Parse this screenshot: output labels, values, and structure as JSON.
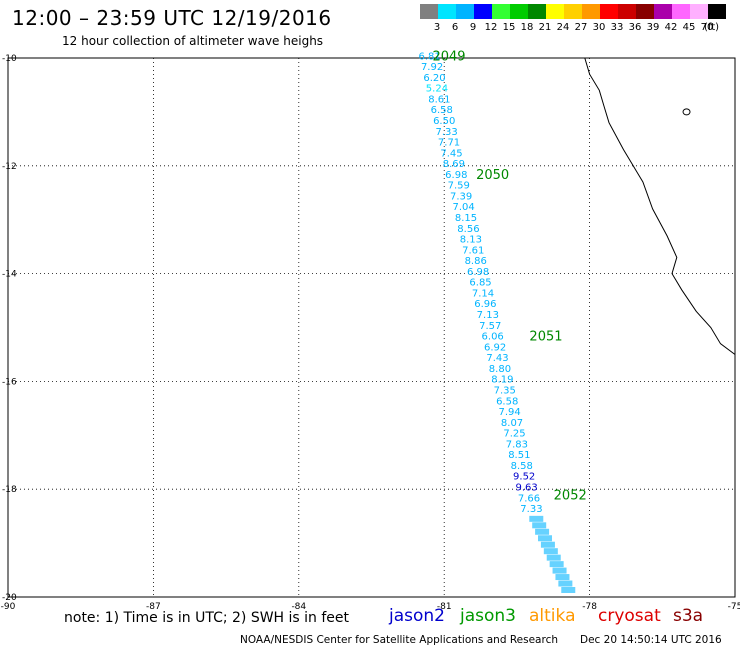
{
  "title": "12:00 – 23:59 UTC 12/19/2016",
  "subtitle": "12 hour collection of altimeter wave heighs",
  "legend": {
    "unit": "(ft)",
    "bins": [
      {
        "label": "3",
        "color": "#808080"
      },
      {
        "label": "6",
        "color": "#00e5ff"
      },
      {
        "label": "9",
        "color": "#00b4ff"
      },
      {
        "label": "12",
        "color": "#0000ff"
      },
      {
        "label": "15",
        "color": "#33ff33"
      },
      {
        "label": "18",
        "color": "#00cc00"
      },
      {
        "label": "21",
        "color": "#008800"
      },
      {
        "label": "24",
        "color": "#ffff00"
      },
      {
        "label": "27",
        "color": "#ffd000"
      },
      {
        "label": "30",
        "color": "#ff9900"
      },
      {
        "label": "33",
        "color": "#ff0000"
      },
      {
        "label": "36",
        "color": "#cc0000"
      },
      {
        "label": "39",
        "color": "#880000"
      },
      {
        "label": "42",
        "color": "#aa00aa"
      },
      {
        "label": "45",
        "color": "#ff66ff"
      },
      {
        "label": "70",
        "color": "#ffb0ff"
      },
      {
        "label": "",
        "color": "#000000"
      }
    ]
  },
  "map": {
    "lon_range": [
      -90,
      -75
    ],
    "lat_range": [
      -20,
      -10
    ],
    "lon_ticks": [
      "-90",
      "-87",
      "-84",
      "-81",
      "-78",
      "-75"
    ],
    "lat_ticks": [
      "-10",
      "-12",
      "-14",
      "-16",
      "-18",
      "-20"
    ],
    "grid": "dotted"
  },
  "passes": [
    {
      "label": "2049",
      "color": "#008800"
    },
    {
      "label": "2050",
      "color": "#008800"
    },
    {
      "label": "2051",
      "color": "#008800"
    },
    {
      "label": "2052",
      "color": "#008800"
    }
  ],
  "swh_points": [
    {
      "lon": -81.3,
      "lat": -9.95,
      "v": "6.81",
      "c": "#00b4ff"
    },
    {
      "lon": -81.25,
      "lat": -10.15,
      "v": "7.92",
      "c": "#00b4ff"
    },
    {
      "lon": -81.2,
      "lat": -10.35,
      "v": "6.20",
      "c": "#00b4ff"
    },
    {
      "lon": -81.15,
      "lat": -10.55,
      "v": "5.24",
      "c": "#00e5ff"
    },
    {
      "lon": -81.1,
      "lat": -10.75,
      "v": "8.61",
      "c": "#00b4ff"
    },
    {
      "lon": -81.05,
      "lat": -10.95,
      "v": "6.58",
      "c": "#00b4ff"
    },
    {
      "lon": -81.0,
      "lat": -11.15,
      "v": "6.50",
      "c": "#00b4ff"
    },
    {
      "lon": -80.95,
      "lat": -11.35,
      "v": "7.33",
      "c": "#00b4ff"
    },
    {
      "lon": -80.9,
      "lat": -11.55,
      "v": "7.71",
      "c": "#00b4ff"
    },
    {
      "lon": -80.85,
      "lat": -11.75,
      "v": "7.45",
      "c": "#00b4ff"
    },
    {
      "lon": -80.8,
      "lat": -11.95,
      "v": "8.69",
      "c": "#00b4ff"
    },
    {
      "lon": -80.75,
      "lat": -12.15,
      "v": "6.98",
      "c": "#00b4ff"
    },
    {
      "lon": -80.7,
      "lat": -12.35,
      "v": "7.59",
      "c": "#00b4ff"
    },
    {
      "lon": -80.65,
      "lat": -12.55,
      "v": "7.39",
      "c": "#00b4ff"
    },
    {
      "lon": -80.6,
      "lat": -12.75,
      "v": "7.04",
      "c": "#00b4ff"
    },
    {
      "lon": -80.55,
      "lat": -12.95,
      "v": "8.15",
      "c": "#00b4ff"
    },
    {
      "lon": -80.5,
      "lat": -13.15,
      "v": "8.56",
      "c": "#00b4ff"
    },
    {
      "lon": -80.45,
      "lat": -13.35,
      "v": "8.13",
      "c": "#00b4ff"
    },
    {
      "lon": -80.4,
      "lat": -13.55,
      "v": "7.61",
      "c": "#00b4ff"
    },
    {
      "lon": -80.35,
      "lat": -13.75,
      "v": "8.86",
      "c": "#00b4ff"
    },
    {
      "lon": -80.3,
      "lat": -13.95,
      "v": "6.98",
      "c": "#00b4ff"
    },
    {
      "lon": -80.25,
      "lat": -14.15,
      "v": "6.85",
      "c": "#00b4ff"
    },
    {
      "lon": -80.2,
      "lat": -14.35,
      "v": "7.14",
      "c": "#00b4ff"
    },
    {
      "lon": -80.15,
      "lat": -14.55,
      "v": "6.96",
      "c": "#00b4ff"
    },
    {
      "lon": -80.1,
      "lat": -14.75,
      "v": "7.13",
      "c": "#00b4ff"
    },
    {
      "lon": -80.05,
      "lat": -14.95,
      "v": "7.57",
      "c": "#00b4ff"
    },
    {
      "lon": -80.0,
      "lat": -15.15,
      "v": "6.06",
      "c": "#00b4ff"
    },
    {
      "lon": -79.95,
      "lat": -15.35,
      "v": "6.92",
      "c": "#00b4ff"
    },
    {
      "lon": -79.9,
      "lat": -15.55,
      "v": "7.43",
      "c": "#00b4ff"
    },
    {
      "lon": -79.85,
      "lat": -15.75,
      "v": "8.80",
      "c": "#00b4ff"
    },
    {
      "lon": -79.8,
      "lat": -15.95,
      "v": "8.19",
      "c": "#00b4ff"
    },
    {
      "lon": -79.75,
      "lat": -16.15,
      "v": "7.35",
      "c": "#00b4ff"
    },
    {
      "lon": -79.7,
      "lat": -16.35,
      "v": "6.58",
      "c": "#00b4ff"
    },
    {
      "lon": -79.65,
      "lat": -16.55,
      "v": "7.94",
      "c": "#00b4ff"
    },
    {
      "lon": -79.6,
      "lat": -16.75,
      "v": "8.07",
      "c": "#00b4ff"
    },
    {
      "lon": -79.55,
      "lat": -16.95,
      "v": "7.25",
      "c": "#00b4ff"
    },
    {
      "lon": -79.5,
      "lat": -17.15,
      "v": "7.83",
      "c": "#00b4ff"
    },
    {
      "lon": -79.45,
      "lat": -17.35,
      "v": "8.51",
      "c": "#00b4ff"
    },
    {
      "lon": -79.4,
      "lat": -17.55,
      "v": "8.58",
      "c": "#00b4ff"
    },
    {
      "lon": -79.35,
      "lat": -17.75,
      "v": "9.52",
      "c": "#0000cc"
    },
    {
      "lon": -79.3,
      "lat": -17.95,
      "v": "9.63",
      "c": "#0000cc"
    },
    {
      "lon": -79.25,
      "lat": -18.15,
      "v": "7.66",
      "c": "#00b4ff"
    },
    {
      "lon": -79.2,
      "lat": -18.35,
      "v": "7.33",
      "c": "#00b4ff"
    }
  ],
  "footer": {
    "note": "note: 1) Time is in UTC; 2) SWH is in feet",
    "satellites": [
      {
        "name": "jason2",
        "color": "#0000cc"
      },
      {
        "name": "jason3",
        "color": "#009900"
      },
      {
        "name": "altika",
        "color": "#ff9900"
      },
      {
        "name": "cryosat",
        "color": "#dd0000"
      },
      {
        "name": "s3a",
        "color": "#880000"
      }
    ],
    "credit": "NOAA/NESDIS Center for Satellite Applications and Research",
    "timestamp": "Dec 20 14:50:14 UTC 2016"
  }
}
